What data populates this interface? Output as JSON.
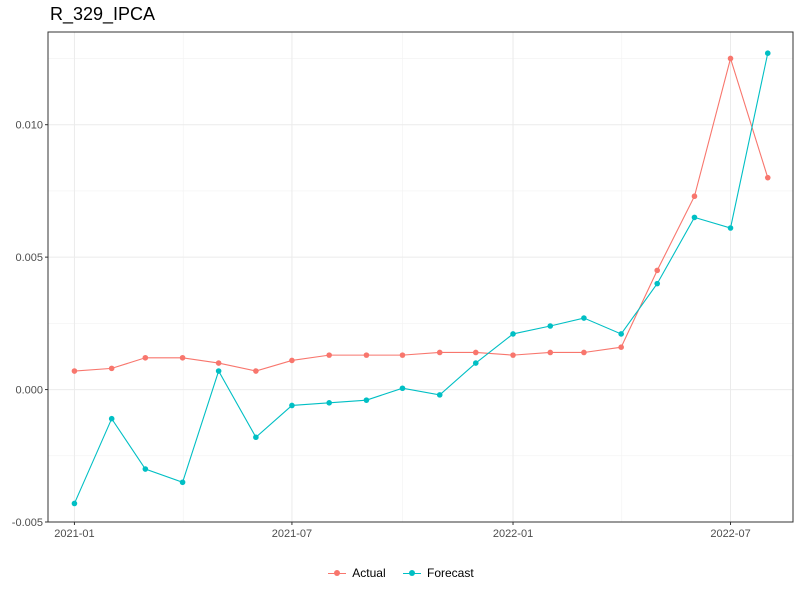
{
  "chart_data": {
    "type": "line",
    "title": "R_329_IPCA",
    "xlabel": "",
    "ylabel": "",
    "x": [
      "2021-01-01",
      "2021-02-01",
      "2021-03-01",
      "2021-04-01",
      "2021-05-01",
      "2021-06-01",
      "2021-07-01",
      "2021-08-01",
      "2021-09-01",
      "2021-10-01",
      "2021-11-01",
      "2021-12-01",
      "2022-01-01",
      "2022-02-01",
      "2022-03-01",
      "2022-04-01",
      "2022-05-01",
      "2022-06-01",
      "2022-07-01",
      "2022-08-01"
    ],
    "series": [
      {
        "name": "Actual",
        "color": "#F8766D",
        "values": [
          0.0007,
          0.0008,
          0.0012,
          0.0012,
          0.001,
          0.0007,
          0.0011,
          0.0013,
          0.0013,
          0.0013,
          0.0014,
          0.0014,
          0.0013,
          0.0014,
          0.0014,
          0.0016,
          0.0045,
          0.0073,
          0.0125,
          0.008
        ]
      },
      {
        "name": "Forecast",
        "color": "#00BFC4",
        "values": [
          -0.0043,
          -0.0011,
          -0.003,
          -0.0035,
          0.0007,
          -0.0018,
          -0.0006,
          -0.0005,
          -0.0004,
          5e-05,
          -0.0002,
          0.001,
          0.0021,
          0.0024,
          0.0027,
          0.0021,
          0.004,
          0.0065,
          0.0061,
          0.0127
        ]
      }
    ],
    "xlim": [
      "2020-12-10",
      "2022-08-22"
    ],
    "ylim": [
      -0.005,
      0.0135
    ],
    "y_ticks": [
      -0.005,
      0.0,
      0.005,
      0.01
    ],
    "y_tick_labels": [
      "-0.005",
      "0.000",
      "0.005",
      "0.010"
    ],
    "x_ticks": [
      "2021-01-01",
      "2021-07-01",
      "2022-01-01",
      "2022-07-01"
    ],
    "x_tick_labels": [
      "2021-01",
      "2021-07",
      "2022-01",
      "2022-07"
    ],
    "grid": true,
    "legend_position": "bottom"
  }
}
